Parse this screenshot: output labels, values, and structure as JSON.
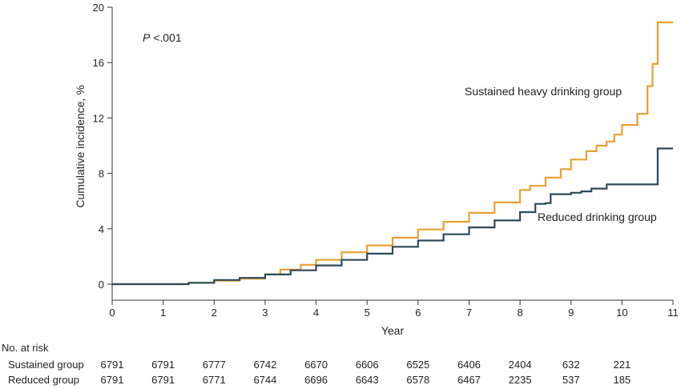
{
  "chart_data": {
    "type": "line",
    "ylabel": "Cumulative incidence, %",
    "xlabel": "Year",
    "xlim": [
      0,
      11
    ],
    "ylim": [
      0,
      20
    ],
    "x_ticks": [
      "0",
      "1",
      "2",
      "3",
      "4",
      "5",
      "6",
      "7",
      "8",
      "9",
      "10",
      "11"
    ],
    "y_ticks": [
      "0",
      "4",
      "8",
      "12",
      "16",
      "20"
    ],
    "grid": false,
    "p_value": {
      "italic_part": "P",
      "rest": " <.001"
    },
    "series": [
      {
        "name": "Sustained heavy drinking group",
        "color": "#e8a030",
        "x": [
          0,
          1,
          1.5,
          2,
          2.5,
          3,
          3.3,
          3.7,
          4,
          4.5,
          5,
          5.5,
          6,
          6.5,
          7,
          7.5,
          8,
          8.2,
          8.5,
          8.8,
          9,
          9.3,
          9.5,
          9.7,
          9.85,
          10,
          10.3,
          10.5,
          10.6,
          10.7,
          10.8,
          10.9,
          11
        ],
        "y": [
          0,
          0,
          0.1,
          0.25,
          0.4,
          0.7,
          1.05,
          1.4,
          1.75,
          2.3,
          2.8,
          3.35,
          3.95,
          4.5,
          5.15,
          5.9,
          6.8,
          7.1,
          7.7,
          8.3,
          9.0,
          9.6,
          10.0,
          10.3,
          10.8,
          11.5,
          12.3,
          14.3,
          15.9,
          18.9,
          18.9,
          18.9,
          18.9
        ],
        "label_text": "Sustained heavy drinking group"
      },
      {
        "name": "Reduced drinking group",
        "color": "#2e4a57",
        "x": [
          0,
          1,
          1.5,
          2,
          2.5,
          3,
          3.5,
          4,
          4.5,
          5,
          5.5,
          6,
          6.5,
          7,
          7.5,
          8,
          8.3,
          8.5,
          8.6,
          9,
          9.2,
          9.4,
          9.7,
          10,
          10.3,
          10.5,
          10.7,
          10.9,
          11
        ],
        "y": [
          0,
          0,
          0.1,
          0.3,
          0.45,
          0.7,
          1.0,
          1.35,
          1.75,
          2.2,
          2.7,
          3.15,
          3.6,
          4.1,
          4.6,
          5.2,
          5.8,
          5.85,
          6.5,
          6.6,
          6.7,
          6.9,
          7.2,
          7.2,
          7.2,
          7.2,
          9.8,
          9.8,
          9.8
        ],
        "label_text": "Reduced drinking group"
      }
    ],
    "risk_table": {
      "title": "No. at risk",
      "rows": [
        {
          "label": "Sustained group",
          "values": [
            "6791",
            "6791",
            "6777",
            "6742",
            "6670",
            "6606",
            "6525",
            "6406",
            "2404",
            "632",
            "221"
          ]
        },
        {
          "label": "Reduced group",
          "values": [
            "6791",
            "6791",
            "6771",
            "6744",
            "6696",
            "6643",
            "6578",
            "6467",
            "2235",
            "537",
            "185"
          ]
        }
      ]
    }
  }
}
